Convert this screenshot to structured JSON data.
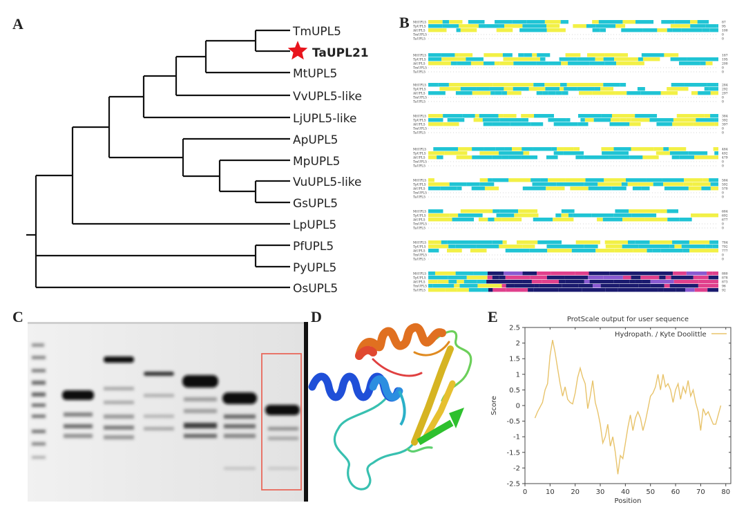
{
  "panels": {
    "a": "A",
    "b": "B",
    "c": "C",
    "d": "D",
    "e": "E"
  },
  "tree": {
    "taxa": [
      "TmUPL5",
      "TaUPL21",
      "MtUPL5",
      "VvUPL5-like",
      "LjUPL5-like",
      "ApUPL5",
      "MpUPL5",
      "VuUPL5-like",
      "GsUPL5",
      "LpUPL5",
      "PfUPL5",
      "PyUPL5",
      "OsUPL5"
    ],
    "highlight": "TaUPL21",
    "star_color": "#e8141c"
  },
  "alignment": {
    "seq_names": [
      "MtUPL5",
      "TpUPL5",
      "AtUPL5",
      "TmUPL5",
      "TaUPL5"
    ],
    "block_end_numbers": [
      [
        "87",
        "95",
        "100",
        "0",
        "0"
      ],
      [
        "187",
        "195",
        "200",
        "0",
        "0"
      ],
      [
        "284",
        "292",
        "297",
        "0",
        "0"
      ],
      [
        "384",
        "392",
        "397",
        "0",
        "0"
      ],
      [
        "484",
        "492",
        "479",
        "0",
        "0"
      ],
      [
        "584",
        "592",
        "570",
        "0",
        "0"
      ],
      [
        "684",
        "692",
        "677",
        "0",
        "0"
      ],
      [
        "784",
        "792",
        "777",
        "0",
        "0"
      ],
      [
        "880",
        "878",
        "873",
        "96",
        "92"
      ]
    ],
    "colors": {
      "identical": "#20c4d4",
      "similar": "#f2f046",
      "conserved": "#1a1a6e",
      "partial": "#e0408c"
    }
  },
  "protscale": {
    "title": "ProtScale output for user sequence",
    "legend": "Hydropath. / Kyte  Doolittle",
    "line_color": "#e8c36a",
    "chart_data": {
      "type": "line",
      "title": "ProtScale output for user sequence",
      "xlabel": "Position",
      "ylabel": "Score",
      "xlim": [
        0,
        82
      ],
      "ylim": [
        -2.5,
        2.5
      ],
      "xticks": [
        "0",
        "10",
        "20",
        "30",
        "40",
        "50",
        "60",
        "70",
        "80"
      ],
      "yticks": [
        "2.5",
        "2",
        "1.5",
        "1",
        "0.5",
        "0",
        "-0.5",
        "-1",
        "-1.5",
        "-2",
        "-2.5"
      ],
      "series": [
        {
          "name": "Hydropath. / Kyte  Doolittle",
          "x": [
            4,
            5,
            6,
            7,
            8,
            9,
            10,
            11,
            12,
            13,
            14,
            15,
            16,
            17,
            18,
            19,
            20,
            21,
            22,
            23,
            24,
            25,
            26,
            27,
            28,
            29,
            30,
            31,
            32,
            33,
            34,
            35,
            36,
            37,
            38,
            39,
            40,
            41,
            42,
            43,
            44,
            45,
            46,
            47,
            48,
            49,
            50,
            51,
            52,
            53,
            54,
            55,
            56,
            57,
            58,
            59,
            60,
            61,
            62,
            63,
            64,
            65,
            66,
            67,
            68,
            69,
            70,
            71,
            72,
            73,
            74,
            75,
            76,
            77,
            78
          ],
          "y": [
            -0.4,
            -0.2,
            -0.05,
            0.1,
            0.5,
            0.7,
            1.6,
            2.1,
            1.7,
            1.2,
            0.7,
            0.3,
            0.6,
            0.2,
            0.1,
            0.05,
            0.4,
            0.9,
            1.2,
            0.9,
            0.7,
            -0.1,
            0.3,
            0.8,
            0.1,
            -0.2,
            -0.6,
            -1.2,
            -1.0,
            -0.6,
            -1.3,
            -1.0,
            -1.5,
            -2.2,
            -1.6,
            -1.7,
            -1.2,
            -0.7,
            -0.3,
            -0.8,
            -0.4,
            -0.2,
            -0.4,
            -0.8,
            -0.5,
            -0.1,
            0.3,
            0.4,
            0.6,
            1.0,
            0.5,
            1.0,
            0.6,
            0.7,
            0.5,
            0.1,
            0.5,
            0.7,
            0.2,
            0.6,
            0.4,
            0.8,
            0.3,
            0.5,
            0.1,
            -0.2,
            -0.8,
            -0.1,
            -0.3,
            -0.2,
            -0.4,
            -0.6,
            -0.6,
            -0.3,
            0.0
          ]
        }
      ]
    }
  }
}
